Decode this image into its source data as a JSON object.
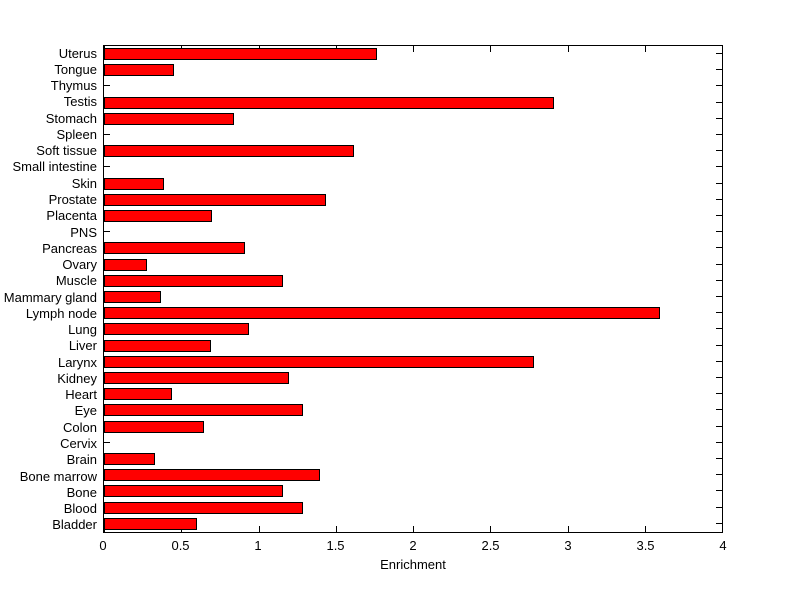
{
  "figure": {
    "background_color": "#FFFFFF",
    "axis_color": "#000000",
    "text_color": "#000000"
  },
  "chart_data": {
    "type": "bar",
    "orientation": "horizontal",
    "title": "",
    "xlabel": "Enrichment",
    "ylabel": "",
    "xlim": [
      0,
      4
    ],
    "x_ticks": [
      0,
      0.5,
      1,
      1.5,
      2,
      2.5,
      3,
      3.5,
      4
    ],
    "x_tick_labels": [
      "0",
      "0.5",
      "1",
      "1.5",
      "2",
      "2.5",
      "3",
      "3.5",
      "4"
    ],
    "grid": false,
    "legend": "none",
    "bar_color": "#FF0000",
    "bar_edge_color": "#000000",
    "categories_top_to_bottom": [
      "Uterus",
      "Tongue",
      "Thymus",
      "Testis",
      "Stomach",
      "Spleen",
      "Soft tissue",
      "Small intestine",
      "Skin",
      "Prostate",
      "Placenta",
      "PNS",
      "Pancreas",
      "Ovary",
      "Muscle",
      "Mammary gland",
      "Lymph node",
      "Lung",
      "Liver",
      "Larynx",
      "Kidney",
      "Heart",
      "Eye",
      "Colon",
      "Cervix",
      "Brain",
      "Bone marrow",
      "Bone",
      "Blood",
      "Bladder"
    ],
    "values_top_to_bottom": [
      1.77,
      0.45,
      0,
      2.91,
      0.84,
      0,
      1.62,
      0,
      0.39,
      1.44,
      0.7,
      0,
      0.91,
      0.28,
      1.16,
      0.37,
      3.6,
      0.94,
      0.69,
      2.78,
      1.2,
      0.44,
      1.29,
      0.65,
      0,
      0.33,
      1.4,
      1.16,
      1.29,
      0.6
    ]
  }
}
